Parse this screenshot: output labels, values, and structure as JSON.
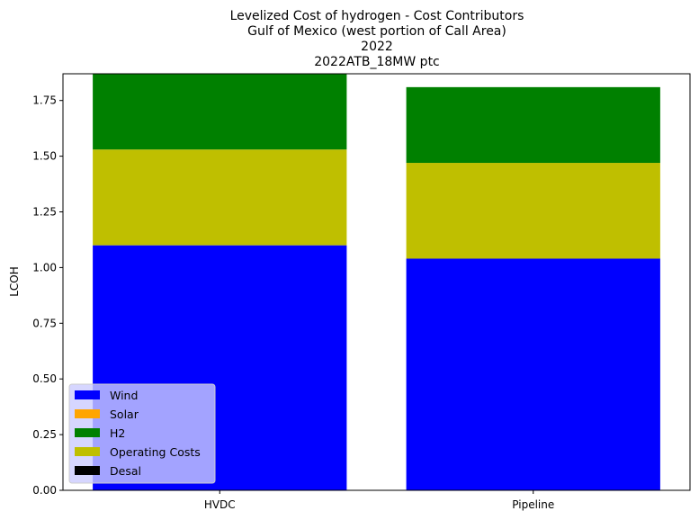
{
  "chart_data": {
    "type": "bar",
    "stacked": true,
    "title_lines": [
      "Levelized Cost of hydrogen - Cost Contributors",
      "Gulf of Mexico (west portion of Call Area)",
      "2022",
      "2022ATB_18MW ptc"
    ],
    "xlabel": "",
    "ylabel": "LCOH",
    "categories": [
      "HVDC",
      "Pipeline"
    ],
    "ylim": [
      0,
      1.87
    ],
    "yticks": [
      "0.00",
      "0.25",
      "0.50",
      "0.75",
      "1.00",
      "1.25",
      "1.50",
      "1.75"
    ],
    "grid": false,
    "legend_position": "lower-left",
    "series": [
      {
        "name": "Wind",
        "color": "#0000ff",
        "values": [
          1.1,
          1.04
        ]
      },
      {
        "name": "Solar",
        "color": "#ffa500",
        "values": [
          0.0,
          0.0
        ]
      },
      {
        "name": "H2",
        "color": "#008000",
        "values": [
          0.34,
          0.34
        ],
        "stack_order": 2
      },
      {
        "name": "Operating Costs",
        "color": "#bfbf00",
        "values": [
          0.43,
          0.43
        ],
        "stack_order": 1
      },
      {
        "name": "Desal",
        "color": "#000000",
        "values": [
          0.0,
          0.0
        ]
      }
    ]
  }
}
